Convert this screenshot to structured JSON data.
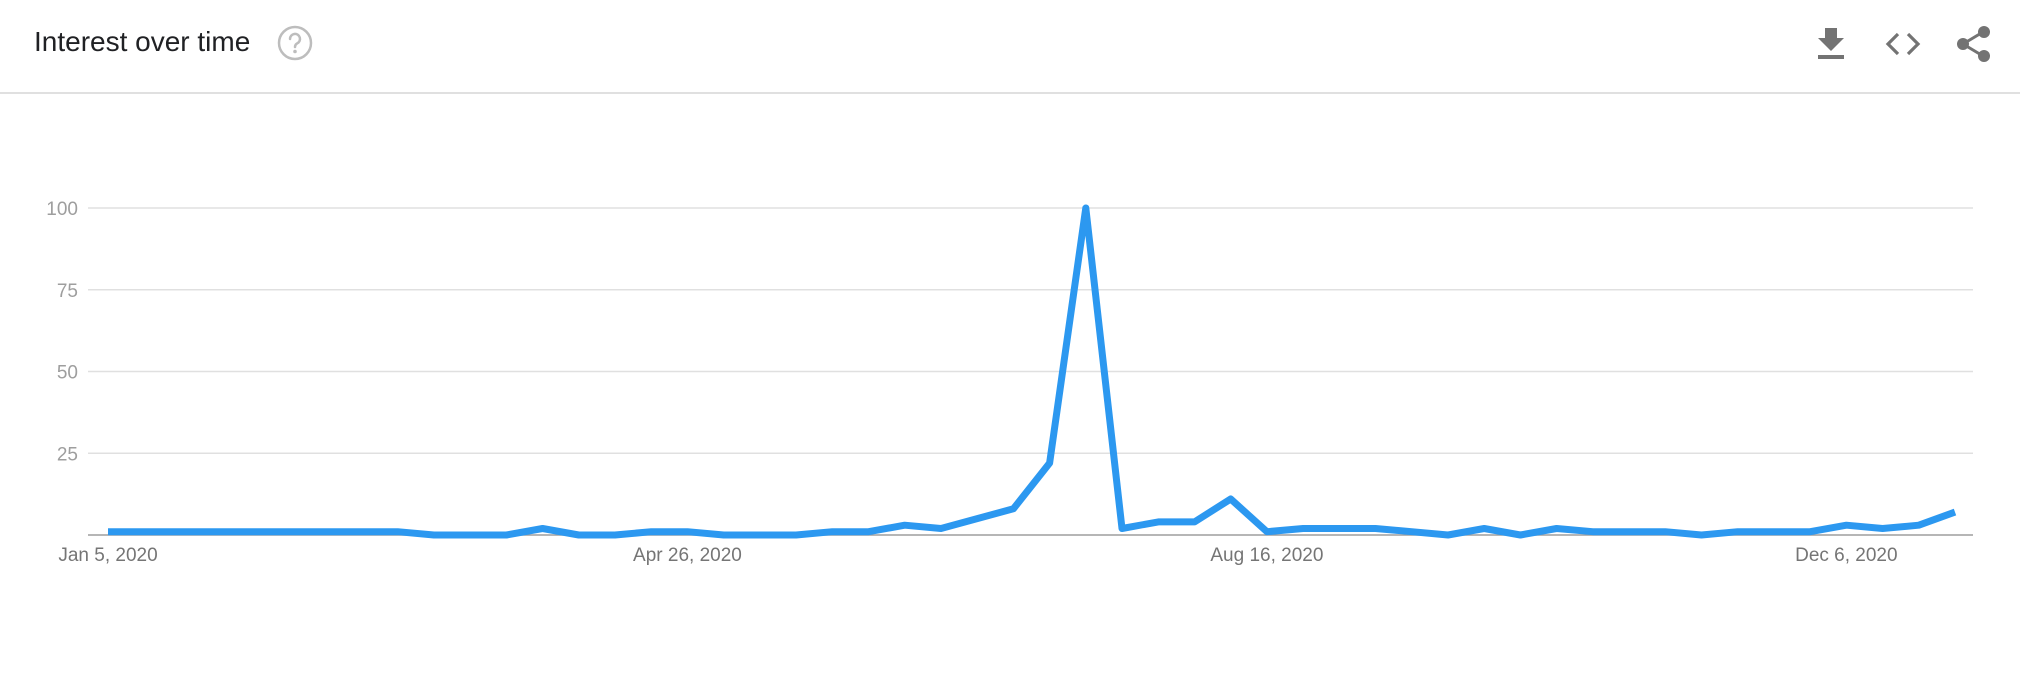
{
  "header": {
    "title": "Interest over time",
    "help_icon": "help-circle-icon",
    "actions": [
      {
        "name": "download-button",
        "icon": "download-icon"
      },
      {
        "name": "embed-button",
        "icon": "code-icon"
      },
      {
        "name": "share-button",
        "icon": "share-icon"
      }
    ]
  },
  "colors": {
    "line": "#2c98f0",
    "grid": "#e0e0e0",
    "axis": "#9e9e9e",
    "tick_text": "#9e9e9e",
    "x_tick_text": "#757575",
    "icons": "#737373"
  },
  "chart_data": {
    "type": "line",
    "ylim": [
      0,
      100
    ],
    "y_ticks": [
      25,
      50,
      75,
      100
    ],
    "x_tick_labels": [
      {
        "index": 0,
        "label": "Jan 5, 2020"
      },
      {
        "index": 16,
        "label": "Apr 26, 2020"
      },
      {
        "index": 32,
        "label": "Aug 16, 2020"
      },
      {
        "index": 48,
        "label": "Dec 6, 2020"
      }
    ],
    "grid": true,
    "series": [
      {
        "values": [
          1,
          1,
          1,
          1,
          1,
          1,
          1,
          1,
          1,
          0,
          0,
          0,
          2,
          0,
          0,
          1,
          1,
          0,
          0,
          0,
          1,
          1,
          3,
          2,
          5,
          8,
          22,
          100,
          2,
          4,
          4,
          11,
          1,
          2,
          2,
          2,
          1,
          0,
          2,
          0,
          2,
          1,
          1,
          1,
          0,
          1,
          1,
          1,
          3,
          2,
          3,
          7
        ]
      }
    ]
  }
}
